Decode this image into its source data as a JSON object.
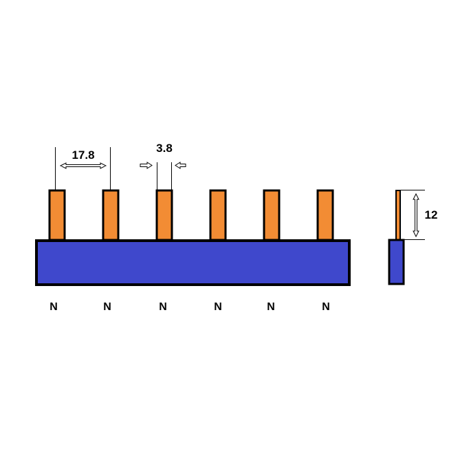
{
  "colors": {
    "bar_fill": "#3f48cc",
    "pin_fill": "#f28c34",
    "outline": "#000000",
    "background": "#ffffff"
  },
  "dimensions": {
    "pitch_label": "17.8",
    "pin_width_label": "3.8",
    "pin_height_label": "12"
  },
  "pins": [
    {
      "label": "N"
    },
    {
      "label": "N"
    },
    {
      "label": "N"
    },
    {
      "label": "N"
    },
    {
      "label": "N"
    },
    {
      "label": "N"
    }
  ]
}
